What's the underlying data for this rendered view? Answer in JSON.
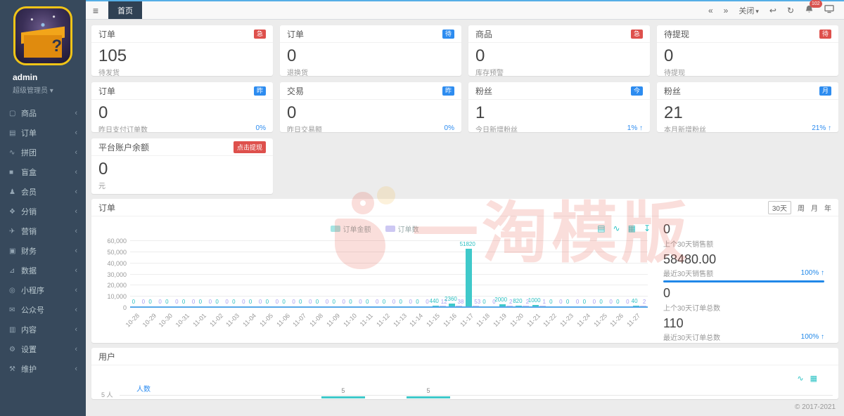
{
  "topbar": {
    "hamburger_icon": "≡",
    "tab": "首页",
    "nav_back_icon": "«",
    "nav_forward_icon": "»",
    "close_label": "关闭",
    "caret": "▾",
    "undo_icon": "↩",
    "refresh_icon": "↻",
    "notification_count": "102"
  },
  "sidebar": {
    "username": "admin",
    "role": "超级管理员",
    "role_caret": "▾",
    "chevron": "‹",
    "items": [
      {
        "name": "products",
        "label": "商品",
        "glyph": "▢"
      },
      {
        "name": "orders",
        "label": "订单",
        "glyph": "▤"
      },
      {
        "name": "groupbuy",
        "label": "拼团",
        "glyph": "∿"
      },
      {
        "name": "blindbox",
        "label": "盲盒",
        "glyph": "■"
      },
      {
        "name": "members",
        "label": "会员",
        "glyph": "♟"
      },
      {
        "name": "distribution",
        "label": "分销",
        "glyph": "❖"
      },
      {
        "name": "marketing",
        "label": "营销",
        "glyph": "✈"
      },
      {
        "name": "finance",
        "label": "财务",
        "glyph": "▣"
      },
      {
        "name": "data",
        "label": "数据",
        "glyph": "⊿"
      },
      {
        "name": "miniprogram",
        "label": "小程序",
        "glyph": "◎"
      },
      {
        "name": "official-account",
        "label": "公众号",
        "glyph": "✉"
      },
      {
        "name": "content",
        "label": "内容",
        "glyph": "▥"
      },
      {
        "name": "settings",
        "label": "设置",
        "glyph": "⚙"
      },
      {
        "name": "maintenance",
        "label": "维护",
        "glyph": "⚒"
      }
    ]
  },
  "stat_cards": [
    {
      "name": "orders-pending-ship",
      "title": "订单",
      "badge": "急",
      "badge_color": "#de504c",
      "value": "105",
      "label": "待发货",
      "percent": "",
      "arrow": ""
    },
    {
      "name": "orders-returns",
      "title": "订单",
      "badge": "待",
      "badge_color": "#2d8cf0",
      "value": "0",
      "label": "退换货",
      "percent": "",
      "arrow": ""
    },
    {
      "name": "products-stock-warning",
      "title": "商品",
      "badge": "急",
      "badge_color": "#de504c",
      "value": "0",
      "label": "库存预警",
      "percent": "",
      "arrow": ""
    },
    {
      "name": "withdraw-pending",
      "title": "待提现",
      "badge": "待",
      "badge_color": "#de504c",
      "value": "0",
      "label": "待提现",
      "percent": "",
      "arrow": ""
    },
    {
      "name": "orders-yesterday-paid",
      "title": "订单",
      "badge": "昨",
      "badge_color": "#2d8cf0",
      "value": "0",
      "label": "昨日支付订单数",
      "percent": "0%",
      "arrow": ""
    },
    {
      "name": "trade-yesterday",
      "title": "交易",
      "badge": "昨",
      "badge_color": "#2d8cf0",
      "value": "0",
      "label": "昨日交易额",
      "percent": "0%",
      "arrow": ""
    },
    {
      "name": "fans-today",
      "title": "粉丝",
      "badge": "今",
      "badge_color": "#2d8cf0",
      "value": "1",
      "label": "今日新增粉丝",
      "percent": "1%",
      "arrow": "↑"
    },
    {
      "name": "fans-month",
      "title": "粉丝",
      "badge": "月",
      "badge_color": "#2d8cf0",
      "value": "21",
      "label": "本月新增粉丝",
      "percent": "21%",
      "arrow": "↑"
    }
  ],
  "balance_card": {
    "title": "平台账户余额",
    "action_label": "点击提现",
    "value": "0",
    "unit": "元"
  },
  "order_chart_card": {
    "title": "订单",
    "period_buttons": [
      "30天",
      "周",
      "月",
      "年"
    ],
    "active_period": "30天",
    "toolbox": [
      {
        "name": "data-view",
        "glyph": "▤"
      },
      {
        "name": "line-chart-toggle",
        "glyph": "∿"
      },
      {
        "name": "bar-chart-toggle",
        "glyph": "▦"
      },
      {
        "name": "download",
        "glyph": "↧"
      }
    ],
    "stats": [
      {
        "value": "0",
        "label": "上个30天销售额",
        "percent": "",
        "arrow": "",
        "bar": false
      },
      {
        "value": "58480.00",
        "label": "最近30天销售额",
        "percent": "100%",
        "arrow": "↑",
        "bar": true
      },
      {
        "value": "0",
        "label": "上个30天订单总数",
        "percent": "",
        "arrow": "",
        "bar": false
      },
      {
        "value": "110",
        "label": "最近30天订单总数",
        "percent": "100%",
        "arrow": "↑",
        "bar": true
      }
    ]
  },
  "users_card": {
    "title": "用户",
    "toolbox": [
      {
        "name": "line-chart-toggle",
        "glyph": "∿"
      },
      {
        "name": "bar-chart-toggle",
        "glyph": "▦"
      }
    ]
  },
  "watermark": {
    "text": "一淘模版"
  },
  "footer": {
    "copyright": "© 2017-2021"
  },
  "chart_data": [
    {
      "id": "orders",
      "type": "bar",
      "title": "订单",
      "legend_position": "top-center",
      "grid": true,
      "ylim": [
        0,
        60000
      ],
      "ytick_step": 10000,
      "ytick_labels": [
        "0",
        "10,000",
        "20,000",
        "30,000",
        "40,000",
        "50,000",
        "60,000"
      ],
      "categories": [
        "10-28",
        "10-29",
        "10-30",
        "10-31",
        "11-01",
        "11-02",
        "11-03",
        "11-04",
        "11-05",
        "11-06",
        "11-07",
        "11-08",
        "11-09",
        "11-10",
        "11-11",
        "11-12",
        "11-13",
        "11-14",
        "11-15",
        "11-16",
        "11-17",
        "11-18",
        "11-19",
        "11-20",
        "11-21",
        "11-22",
        "11-23",
        "11-24",
        "11-25",
        "11-26",
        "11-27"
      ],
      "series": [
        {
          "name": "订单金额",
          "color": "#3fc9ca",
          "swatch_color": "#a5e5e3",
          "label_color": "#2cc0c2",
          "values": [
            0,
            0,
            0,
            0,
            0,
            0,
            0,
            0,
            0,
            0,
            0,
            0,
            0,
            0,
            0,
            0,
            0,
            0,
            440,
            2360,
            51820,
            0,
            2000,
            820,
            1000,
            0,
            0,
            0,
            0,
            0,
            40
          ]
        },
        {
          "name": "订单数",
          "color": "#c6c0f1",
          "swatch_color": "#cdc8f3",
          "label_color": "#a79df0",
          "values": [
            0,
            0,
            0,
            0,
            0,
            0,
            0,
            0,
            0,
            0,
            0,
            0,
            0,
            0,
            0,
            0,
            0,
            0,
            12,
            38,
            53,
            0,
            2,
            2,
            1,
            0,
            0,
            0,
            0,
            0,
            2
          ]
        }
      ]
    },
    {
      "id": "users",
      "type": "bar",
      "title": "用户",
      "legend": "人数",
      "ytick_label": "5 人",
      "series": [
        {
          "name": "人数",
          "color": "#3fc9ca",
          "values": [
            5,
            5
          ]
        }
      ],
      "bars_layout": [
        {
          "left_frac": 0.308,
          "width_frac": 0.058
        },
        {
          "left_frac": 0.422,
          "width_frac": 0.058
        }
      ]
    }
  ]
}
